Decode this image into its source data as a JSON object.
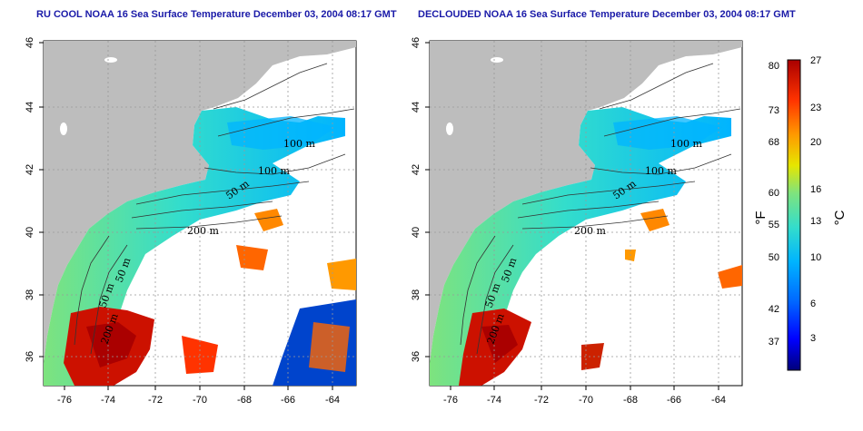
{
  "panels": [
    {
      "title": "RU COOL NOAA 16 Sea Surface Temperature December 03, 2004 08:17 GMT",
      "contour_labels": [
        "100 m",
        "100 m",
        "50 m",
        "200 m",
        "50 m",
        "50 m",
        "200 m"
      ]
    },
    {
      "title": "DECLOUDED NOAA 16 Sea Surface Temperature December 03, 2004 08:17 GMT",
      "contour_labels": [
        "100 m",
        "100 m",
        "50 m",
        "200 m",
        "50 m",
        "50 m",
        "200 m"
      ]
    }
  ],
  "axes": {
    "x_ticks": [
      "-76",
      "-74",
      "-72",
      "-70",
      "-68",
      "-66",
      "-64"
    ],
    "y_ticks": [
      "46",
      "44",
      "42",
      "40",
      "38",
      "36"
    ]
  },
  "colorbar": {
    "fahrenheit_ticks": [
      "80",
      "73",
      "68",
      "60",
      "55",
      "50",
      "42",
      "37"
    ],
    "celsius_ticks": [
      "27",
      "23",
      "20",
      "16",
      "13",
      "10",
      "6",
      "3"
    ],
    "fahrenheit_unit": "°F",
    "celsius_unit": "°C",
    "colors": [
      "#00007a",
      "#0000ff",
      "#0066ff",
      "#00b4ff",
      "#33ddcc",
      "#7ee37e",
      "#e6e600",
      "#ff9900",
      "#ff3300",
      "#aa0000"
    ]
  },
  "colors": {
    "land": "#bdbdbd",
    "title": "#1a1aa8"
  }
}
